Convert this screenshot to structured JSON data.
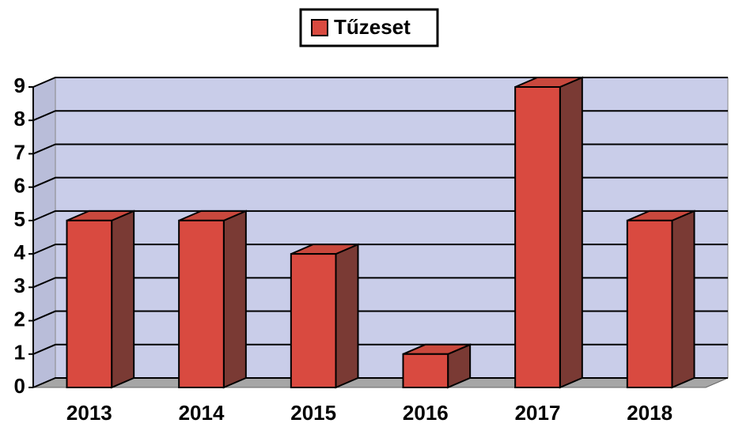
{
  "chart_data": {
    "type": "bar3d",
    "categories": [
      "2013",
      "2014",
      "2015",
      "2016",
      "2017",
      "2018"
    ],
    "series": [
      {
        "name": "Tűzeset",
        "color": "#d94a40",
        "values": [
          5,
          5,
          4,
          1,
          9,
          5
        ]
      }
    ],
    "ylim": [
      0,
      9
    ],
    "yticks": [
      0,
      1,
      2,
      3,
      4,
      5,
      6,
      7,
      8,
      9
    ],
    "grid": true,
    "legend": "top"
  }
}
